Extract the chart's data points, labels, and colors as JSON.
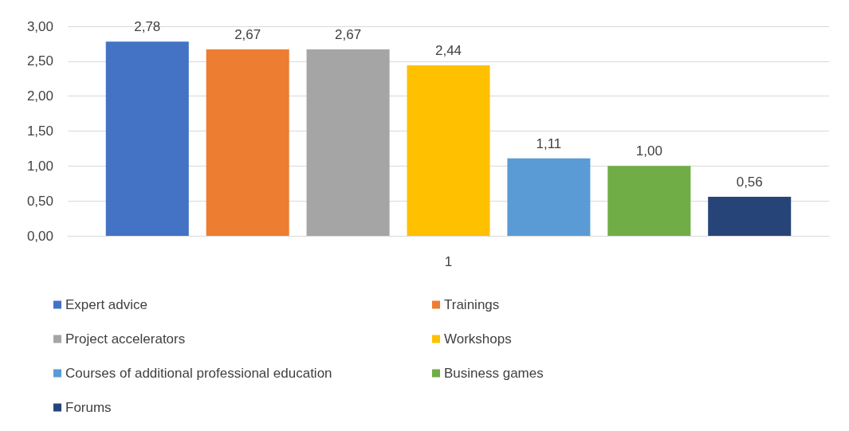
{
  "chart_data": {
    "type": "bar",
    "categories": [
      "1"
    ],
    "series": [
      {
        "name": "Expert advice",
        "color": "#4472c4",
        "values": [
          2.78
        ],
        "value_labels": [
          "2,78"
        ]
      },
      {
        "name": "Trainings",
        "color": "#ed7d31",
        "values": [
          2.67
        ],
        "value_labels": [
          "2,67"
        ]
      },
      {
        "name": "Project accelerators",
        "color": "#a5a5a5",
        "values": [
          2.67
        ],
        "value_labels": [
          "2,67"
        ]
      },
      {
        "name": "Workshops",
        "color": "#ffc000",
        "values": [
          2.44
        ],
        "value_labels": [
          "2,44"
        ]
      },
      {
        "name": "Courses of additional professional education",
        "color": "#5b9bd5",
        "values": [
          1.11
        ],
        "value_labels": [
          "1,11"
        ]
      },
      {
        "name": "Business games",
        "color": "#70ad47",
        "values": [
          1.0
        ],
        "value_labels": [
          "1,00"
        ]
      },
      {
        "name": "Forums",
        "color": "#264478",
        "values": [
          0.56
        ],
        "value_labels": [
          "0,56"
        ]
      }
    ],
    "ylim": [
      0,
      3
    ],
    "yticks": [
      {
        "value": 0,
        "label": "0,00"
      },
      {
        "value": 0.5,
        "label": "0,50"
      },
      {
        "value": 1,
        "label": "1,00"
      },
      {
        "value": 1.5,
        "label": "1,50"
      },
      {
        "value": 2,
        "label": "2,00"
      },
      {
        "value": 2.5,
        "label": "2,50"
      },
      {
        "value": 3,
        "label": "3,00"
      }
    ],
    "grid": "y",
    "legend": "bottom"
  }
}
